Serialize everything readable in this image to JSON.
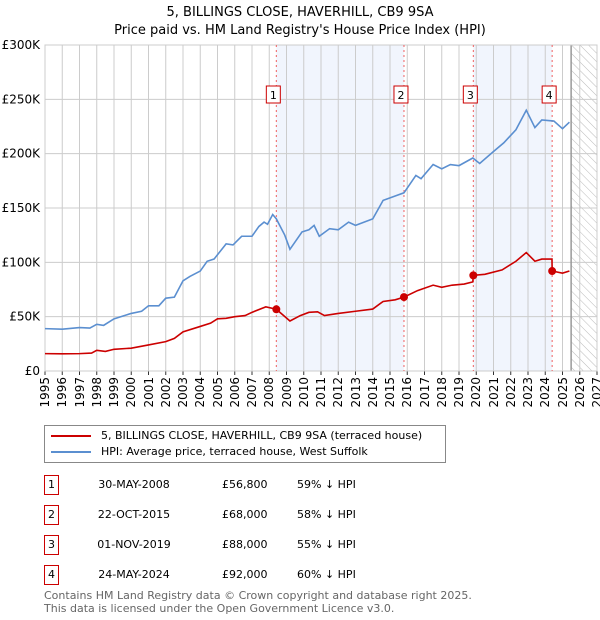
{
  "chart_data": {
    "type": "line",
    "title": "5, BILLINGS CLOSE, HAVERHILL, CB9 9SA",
    "subtitle": "Price paid vs. HM Land Registry's House Price Index (HPI)",
    "xlim": [
      1995,
      2027
    ],
    "ylim": [
      0,
      300000
    ],
    "x_ticks": [
      "1995",
      "1996",
      "1997",
      "1998",
      "1999",
      "2000",
      "2001",
      "2002",
      "2003",
      "2004",
      "2005",
      "2006",
      "2007",
      "2008",
      "2009",
      "2010",
      "2011",
      "2012",
      "2013",
      "2014",
      "2015",
      "2016",
      "2017",
      "2018",
      "2019",
      "2020",
      "2021",
      "2022",
      "2023",
      "2024",
      "2025",
      "2026",
      "2027"
    ],
    "y_ticks": [
      {
        "v": 0,
        "label": "£0"
      },
      {
        "v": 50000,
        "label": "£50K"
      },
      {
        "v": 100000,
        "label": "£100K"
      },
      {
        "v": 150000,
        "label": "£150K"
      },
      {
        "v": 200000,
        "label": "£200K"
      },
      {
        "v": 250000,
        "label": "£250K"
      },
      {
        "v": 300000,
        "label": "£300K"
      }
    ],
    "grid": true,
    "shaded_ranges": [
      [
        2008.41,
        2015.81
      ],
      [
        2019.83,
        2024.4
      ]
    ],
    "forecast_from": 2025.5,
    "series": [
      {
        "name": "5, BILLINGS CLOSE, HAVERHILL, CB9 9SA (terraced house)",
        "color": "#cc0000",
        "points": [
          [
            1995,
            16000
          ],
          [
            1996,
            15800
          ],
          [
            1997,
            16000
          ],
          [
            1997.7,
            16500
          ],
          [
            1998,
            19000
          ],
          [
            1998.5,
            18000
          ],
          [
            1999,
            20000
          ],
          [
            2000,
            21000
          ],
          [
            2001,
            24000
          ],
          [
            2002,
            27000
          ],
          [
            2002.5,
            30000
          ],
          [
            2003,
            36000
          ],
          [
            2004,
            41000
          ],
          [
            2004.6,
            44000
          ],
          [
            2005,
            48000
          ],
          [
            2005.5,
            48500
          ],
          [
            2006,
            50000
          ],
          [
            2006.6,
            51000
          ],
          [
            2007,
            54000
          ],
          [
            2007.8,
            59000
          ],
          [
            2008.41,
            56800
          ],
          [
            2009.2,
            46000
          ],
          [
            2009.8,
            51000
          ],
          [
            2010.3,
            54000
          ],
          [
            2010.8,
            54500
          ],
          [
            2011.2,
            51000
          ],
          [
            2012,
            53000
          ],
          [
            2013,
            55000
          ],
          [
            2014,
            57000
          ],
          [
            2014.6,
            64000
          ],
          [
            2015.3,
            65500
          ],
          [
            2015.81,
            68000
          ],
          [
            2016.6,
            74000
          ],
          [
            2017.5,
            79000
          ],
          [
            2018,
            77000
          ],
          [
            2018.6,
            79000
          ],
          [
            2019.3,
            80000
          ],
          [
            2019.8,
            82000
          ],
          [
            2019.83,
            88000
          ],
          [
            2020.5,
            89000
          ],
          [
            2021.5,
            93000
          ],
          [
            2022.3,
            101000
          ],
          [
            2022.9,
            109000
          ],
          [
            2023.4,
            101000
          ],
          [
            2023.8,
            103000
          ],
          [
            2024.39,
            103000
          ],
          [
            2024.4,
            92000
          ],
          [
            2025,
            90000
          ],
          [
            2025.4,
            92000
          ]
        ]
      },
      {
        "name": "HPI: Average price, terraced house, West Suffolk",
        "color": "#5b8fd0",
        "points": [
          [
            1995,
            39000
          ],
          [
            1996,
            38500
          ],
          [
            1997,
            40000
          ],
          [
            1997.6,
            39500
          ],
          [
            1998,
            43000
          ],
          [
            1998.4,
            42000
          ],
          [
            1999,
            48000
          ],
          [
            2000,
            53000
          ],
          [
            2000.6,
            55000
          ],
          [
            2001,
            60000
          ],
          [
            2001.6,
            60000
          ],
          [
            2002,
            67000
          ],
          [
            2002.5,
            68000
          ],
          [
            2003,
            83000
          ],
          [
            2003.4,
            87000
          ],
          [
            2004,
            92000
          ],
          [
            2004.4,
            101000
          ],
          [
            2004.8,
            103000
          ],
          [
            2005.5,
            117000
          ],
          [
            2005.9,
            116000
          ],
          [
            2006.4,
            124000
          ],
          [
            2007,
            124000
          ],
          [
            2007.4,
            133000
          ],
          [
            2007.7,
            137000
          ],
          [
            2007.9,
            135000
          ],
          [
            2008.2,
            144000
          ],
          [
            2008.41,
            140000
          ],
          [
            2008.9,
            125000
          ],
          [
            2009.2,
            112000
          ],
          [
            2009.9,
            128000
          ],
          [
            2010.3,
            130000
          ],
          [
            2010.6,
            134000
          ],
          [
            2010.9,
            124000
          ],
          [
            2011.5,
            131000
          ],
          [
            2012,
            130000
          ],
          [
            2012.6,
            137000
          ],
          [
            2013,
            134000
          ],
          [
            2014,
            140000
          ],
          [
            2014.6,
            157000
          ],
          [
            2015.3,
            161000
          ],
          [
            2015.81,
            164000
          ],
          [
            2016.5,
            180000
          ],
          [
            2016.8,
            177000
          ],
          [
            2017.5,
            190000
          ],
          [
            2018,
            186000
          ],
          [
            2018.5,
            190000
          ],
          [
            2019,
            189000
          ],
          [
            2019.8,
            196000
          ],
          [
            2020.2,
            191000
          ],
          [
            2021,
            202000
          ],
          [
            2021.6,
            210000
          ],
          [
            2022.3,
            222000
          ],
          [
            2022.9,
            240000
          ],
          [
            2023.4,
            224000
          ],
          [
            2023.8,
            231000
          ],
          [
            2024.5,
            230000
          ],
          [
            2025,
            223000
          ],
          [
            2025.4,
            229000
          ]
        ]
      }
    ],
    "sales": [
      {
        "label": "1",
        "x": 2008.41,
        "y": 56800
      },
      {
        "label": "2",
        "x": 2015.81,
        "y": 68000
      },
      {
        "label": "3",
        "x": 2019.83,
        "y": 88000
      },
      {
        "label": "4",
        "x": 2024.4,
        "y": 92000
      }
    ]
  },
  "legend": {
    "property": "5, BILLINGS CLOSE, HAVERHILL, CB9 9SA (terraced house)",
    "hpi": "HPI: Average price, terraced house, West Suffolk"
  },
  "transactions": [
    {
      "num": "1",
      "date": "30-MAY-2008",
      "price": "£56,800",
      "pct": "59% ↓ HPI"
    },
    {
      "num": "2",
      "date": "22-OCT-2015",
      "price": "£68,000",
      "pct": "58% ↓ HPI"
    },
    {
      "num": "3",
      "date": "01-NOV-2019",
      "price": "£88,000",
      "pct": "55% ↓ HPI"
    },
    {
      "num": "4",
      "date": "24-MAY-2024",
      "price": "£92,000",
      "pct": "60% ↓ HPI"
    }
  ],
  "footer": {
    "line1": "Contains HM Land Registry data © Crown copyright and database right 2025.",
    "line2": "This data is licensed under the Open Government Licence v3.0."
  }
}
